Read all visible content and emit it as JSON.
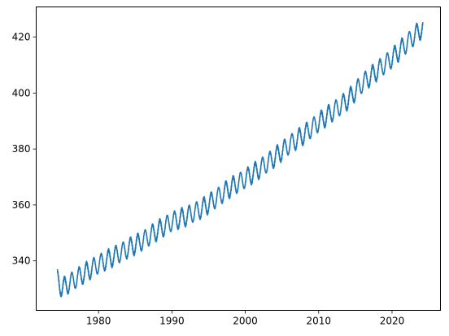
{
  "chart_data": {
    "type": "line",
    "title": "",
    "xlabel": "",
    "ylabel": "",
    "xlim": [
      1971.5,
      2026.6
    ],
    "ylim": [
      322.3,
      430.8
    ],
    "xticks": [
      1980,
      1990,
      2000,
      2010,
      2020
    ],
    "yticks": [
      340,
      360,
      380,
      400,
      420
    ],
    "xtick_labels": [
      "1980",
      "1990",
      "2000",
      "2010",
      "2020"
    ],
    "ytick_labels": [
      "340",
      "360",
      "380",
      "400",
      "420"
    ],
    "grid": false,
    "legend": "none",
    "series": [
      {
        "color": "#1f77b4",
        "points": [
          [
            1974.4,
            333.5
          ],
          [
            1975.0,
            330.2
          ],
          [
            1976.0,
            332.0
          ],
          [
            1978.0,
            335.5
          ],
          [
            1980.0,
            338.8
          ],
          [
            1982.0,
            341.5
          ],
          [
            1984.0,
            344.4
          ],
          [
            1986.0,
            347.2
          ],
          [
            1988.0,
            350.8
          ],
          [
            1990.0,
            354.0
          ],
          [
            1992.0,
            356.0
          ],
          [
            1994.0,
            358.6
          ],
          [
            1996.0,
            362.3
          ],
          [
            1998.0,
            366.3
          ],
          [
            2000.0,
            369.4
          ],
          [
            2002.0,
            373.0
          ],
          [
            2004.0,
            377.0
          ],
          [
            2006.0,
            381.5
          ],
          [
            2008.0,
            385.2
          ],
          [
            2010.0,
            389.6
          ],
          [
            2012.0,
            393.5
          ],
          [
            2014.0,
            397.6
          ],
          [
            2016.0,
            403.6
          ],
          [
            2018.0,
            408.0
          ],
          [
            2020.0,
            412.5
          ],
          [
            2022.0,
            417.8
          ],
          [
            2024.2,
            423.5
          ]
        ],
        "seasonal_amplitude": 3.2
      }
    ]
  }
}
